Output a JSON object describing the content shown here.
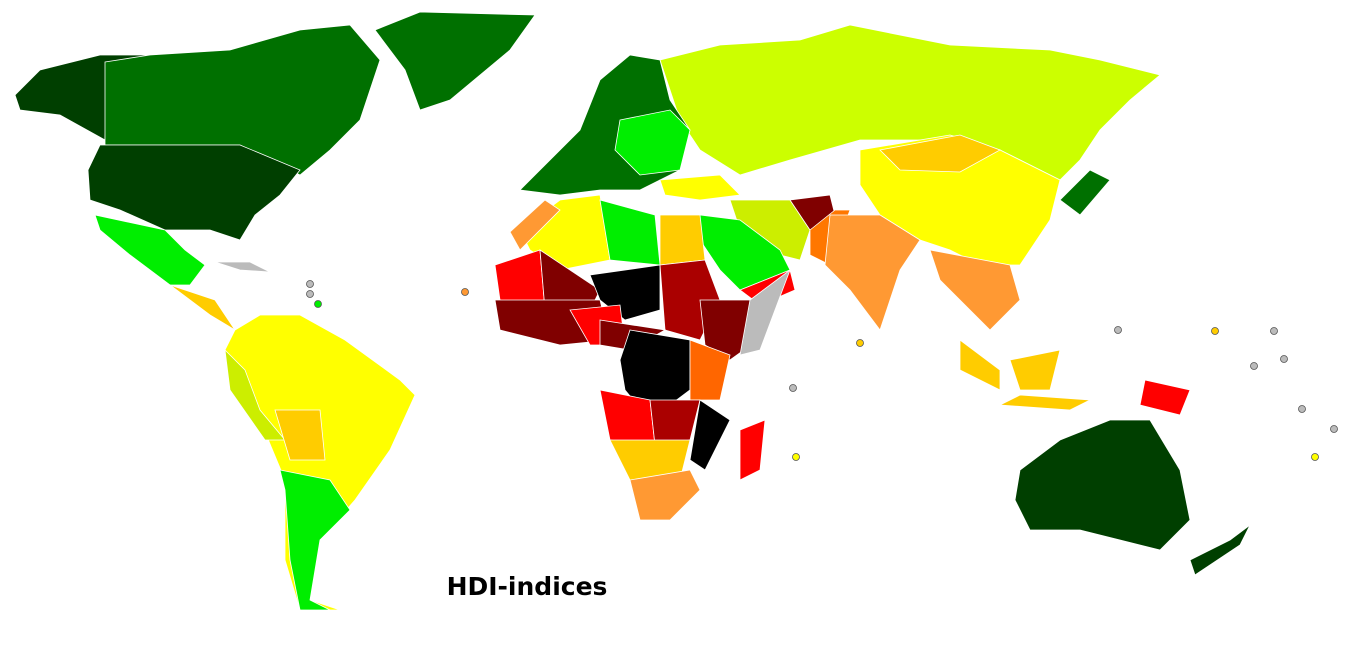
{
  "title": "HDI-indices"
}
